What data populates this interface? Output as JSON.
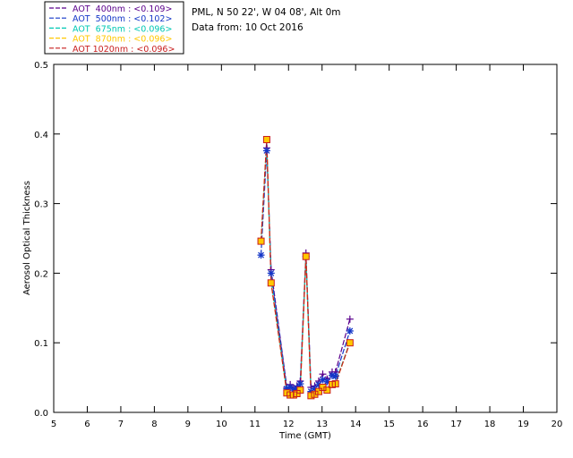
{
  "header": {
    "site_line": "PML, N 50 22', W 04 08', Alt 0m",
    "date_line": "Data from: 10 Oct 2016"
  },
  "chart_data": {
    "type": "line",
    "xlabel": "Time (GMT)",
    "ylabel": "Aerosol Optical Thickness",
    "xlim": [
      5,
      20
    ],
    "ylim": [
      0,
      0.5
    ],
    "x_ticks": [
      5,
      6,
      7,
      8,
      9,
      10,
      11,
      12,
      13,
      14,
      15,
      16,
      17,
      18,
      19,
      20
    ],
    "x_tick_labels": [
      "5",
      "6",
      "7",
      "8",
      "9",
      "10",
      "11",
      "12",
      "13",
      "14",
      "15",
      "16",
      "17",
      "18",
      "19",
      "20"
    ],
    "y_ticks": [
      0,
      0.1,
      0.2,
      0.3,
      0.4,
      0.5
    ],
    "y_tick_labels": [
      "0.0",
      "0.1",
      "0.2",
      "0.3",
      "0.4",
      "0.5"
    ],
    "grid": false,
    "legend_position": "top-left",
    "series": [
      {
        "name": "AOT  400nm : <0.109>",
        "color": "#5a008c",
        "marker": "plus",
        "x": [
          11.35,
          11.48,
          11.95,
          12.05,
          12.15,
          12.25,
          12.35,
          12.52,
          12.67,
          12.78,
          12.9,
          13.02,
          13.15,
          13.3,
          13.4,
          13.83
        ],
        "y": [
          0.38,
          0.205,
          0.036,
          0.04,
          0.035,
          0.038,
          0.045,
          0.229,
          0.036,
          0.038,
          0.045,
          0.055,
          0.048,
          0.058,
          0.058,
          0.134
        ]
      },
      {
        "name": "AOT  500nm : <0.102>",
        "color": "#1437c8",
        "marker": "star",
        "x": [
          11.18,
          11.35,
          11.48,
          11.95,
          12.05,
          12.15,
          12.25,
          12.35,
          12.52,
          12.67,
          12.78,
          12.9,
          13.02,
          13.15,
          13.3,
          13.4,
          13.83
        ],
        "y": [
          0.226,
          0.376,
          0.2,
          0.034,
          0.036,
          0.032,
          0.035,
          0.041,
          0.224,
          0.03,
          0.034,
          0.04,
          0.047,
          0.044,
          0.053,
          0.052,
          0.117
        ]
      },
      {
        "name": "AOT  675nm : <0.096>",
        "color": "#00c8b4",
        "marker": "none",
        "x": [
          11.18,
          11.35,
          11.48,
          11.95,
          12.05,
          12.15,
          12.25,
          12.35,
          12.52,
          12.67,
          12.78,
          12.9,
          13.02,
          13.15,
          13.3,
          13.4,
          13.83
        ],
        "y": [
          0.245,
          0.39,
          0.19,
          0.029,
          0.027,
          0.027,
          0.029,
          0.034,
          0.224,
          0.026,
          0.028,
          0.032,
          0.038,
          0.034,
          0.042,
          0.043,
          0.101
        ]
      },
      {
        "name": "AOT  870nm : <0.096>",
        "color": "#ffc800",
        "marker": "square-filled",
        "x": [
          11.18,
          11.35,
          11.48,
          11.95,
          12.05,
          12.15,
          12.25,
          12.35,
          12.52,
          12.67,
          12.78,
          12.9,
          13.02,
          13.15,
          13.3,
          13.4,
          13.83
        ],
        "y": [
          0.246,
          0.392,
          0.186,
          0.028,
          0.025,
          0.025,
          0.027,
          0.032,
          0.224,
          0.024,
          0.026,
          0.03,
          0.036,
          0.032,
          0.04,
          0.041,
          0.1
        ]
      },
      {
        "name": "AOT 1020nm : <0.096>",
        "color": "#c81e1e",
        "marker": "square-open",
        "x": [
          11.18,
          11.35,
          11.48,
          11.95,
          12.05,
          12.15,
          12.25,
          12.35,
          12.52,
          12.67,
          12.78,
          12.9,
          13.02,
          13.15,
          13.3,
          13.4,
          13.83
        ],
        "y": [
          0.246,
          0.392,
          0.186,
          0.028,
          0.025,
          0.025,
          0.027,
          0.032,
          0.224,
          0.024,
          0.026,
          0.03,
          0.036,
          0.032,
          0.04,
          0.041,
          0.1
        ]
      }
    ]
  }
}
